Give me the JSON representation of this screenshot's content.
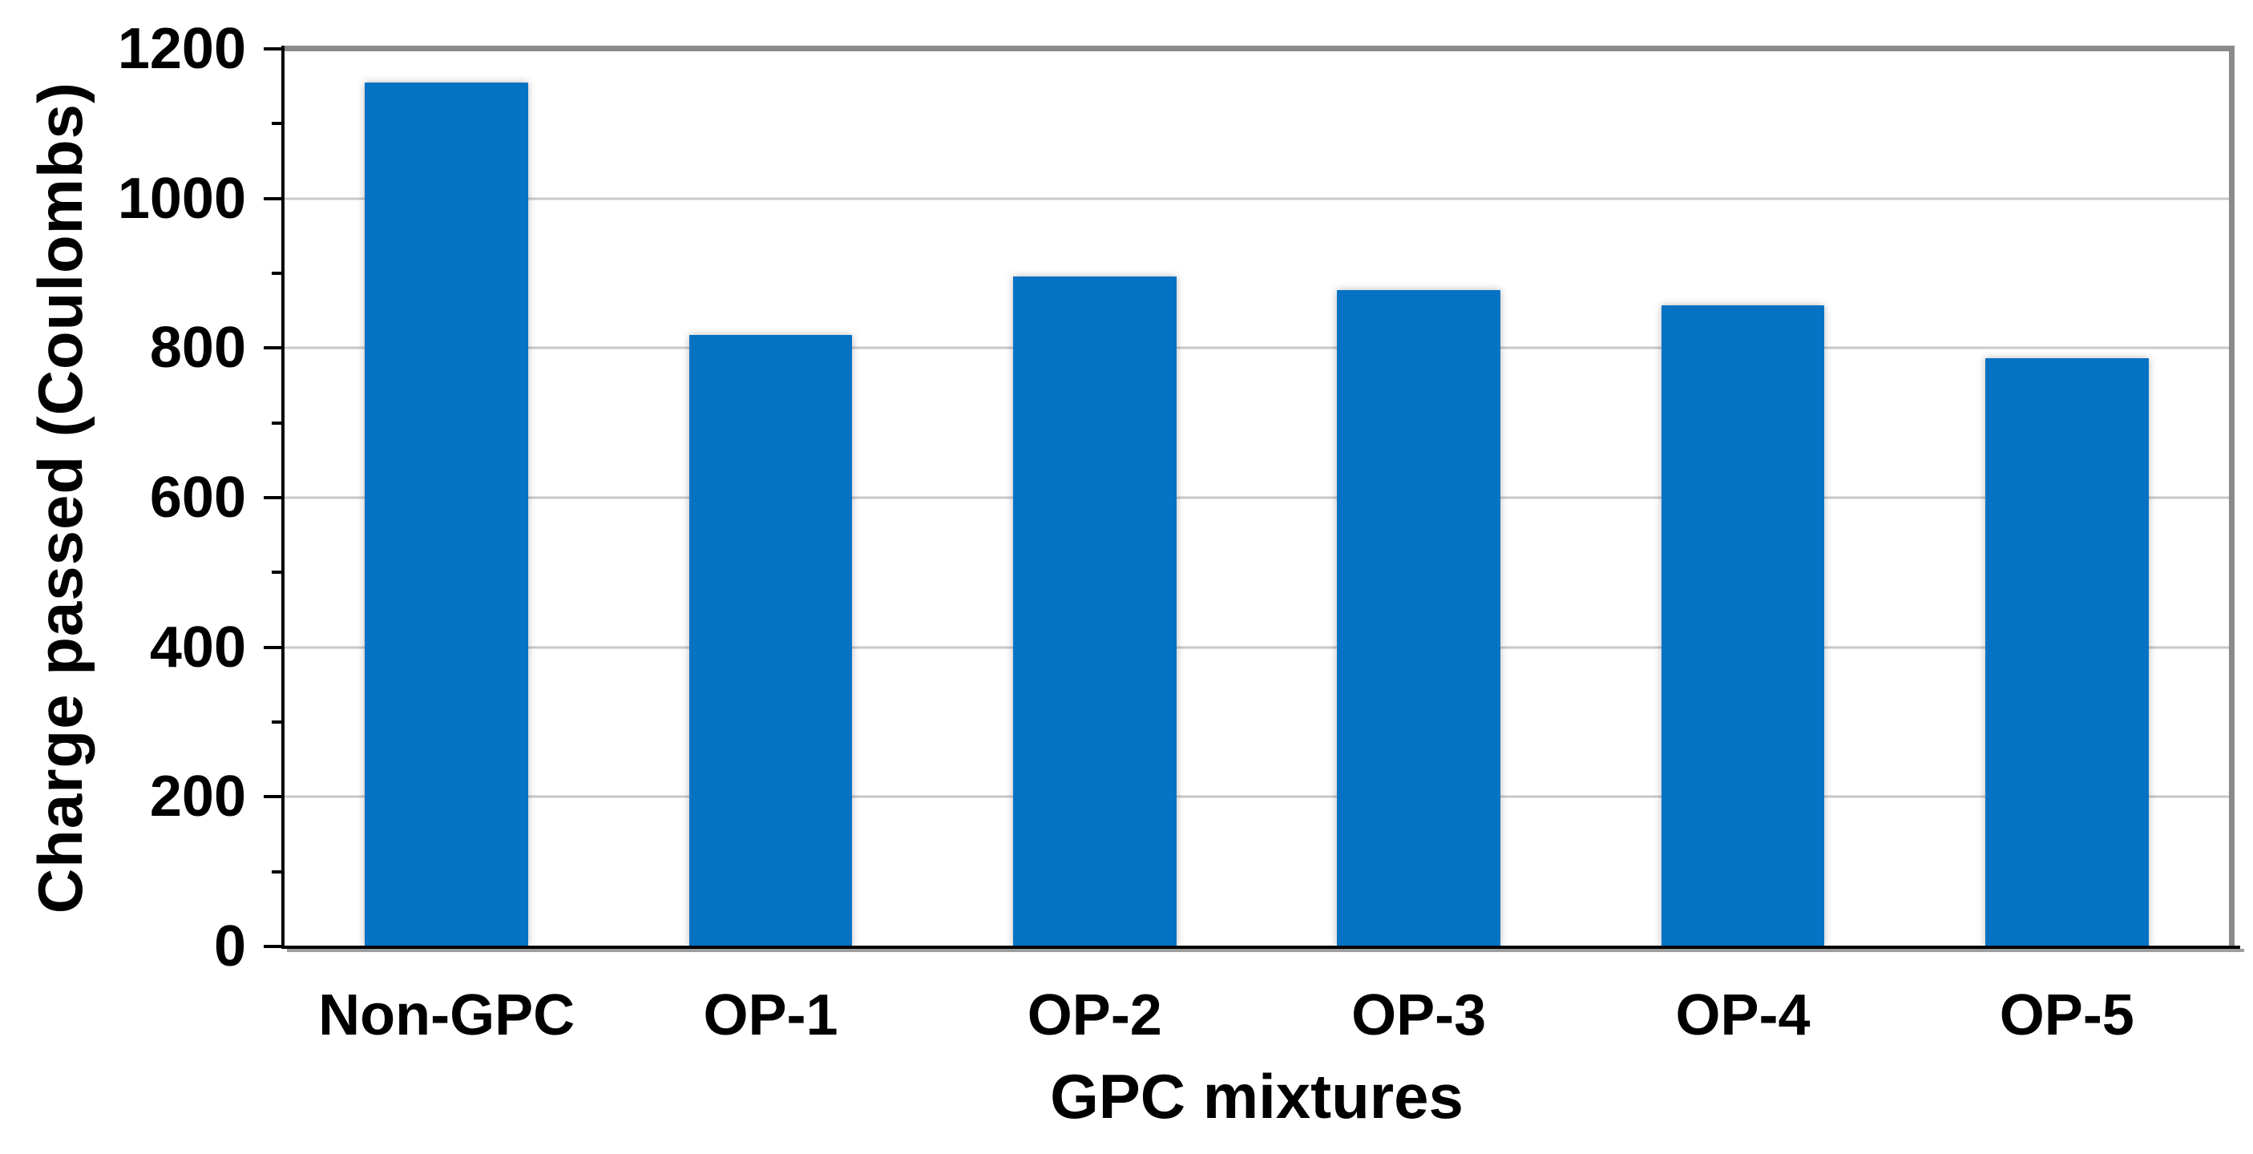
{
  "chart_data": {
    "type": "bar",
    "title": "",
    "xlabel": "GPC mixtures",
    "ylabel": "Charge passed (Coulombs)",
    "categories": [
      "Non-GPC",
      "OP-1",
      "OP-2",
      "OP-3",
      "OP-4",
      "OP-5"
    ],
    "values": [
      1155,
      818,
      896,
      877,
      857,
      786
    ],
    "ylim": [
      0,
      1200
    ],
    "yticks_major": [
      0,
      200,
      400,
      600,
      800,
      1000,
      1200
    ],
    "yticks_minor": [
      100,
      300,
      500,
      700,
      900,
      1100
    ],
    "gridlines_at": [
      200,
      400,
      600,
      800,
      1000
    ],
    "grid": "horizontal-major",
    "legend": "none",
    "bar_color": "#0572c3",
    "grid_color": "#c8c8c8",
    "axis_color": "#000000",
    "frame_color": "#8a8a8a",
    "axis_shadow_color": "#9e9e9e",
    "background_color": "#ffffff",
    "text_color": "#000000"
  }
}
